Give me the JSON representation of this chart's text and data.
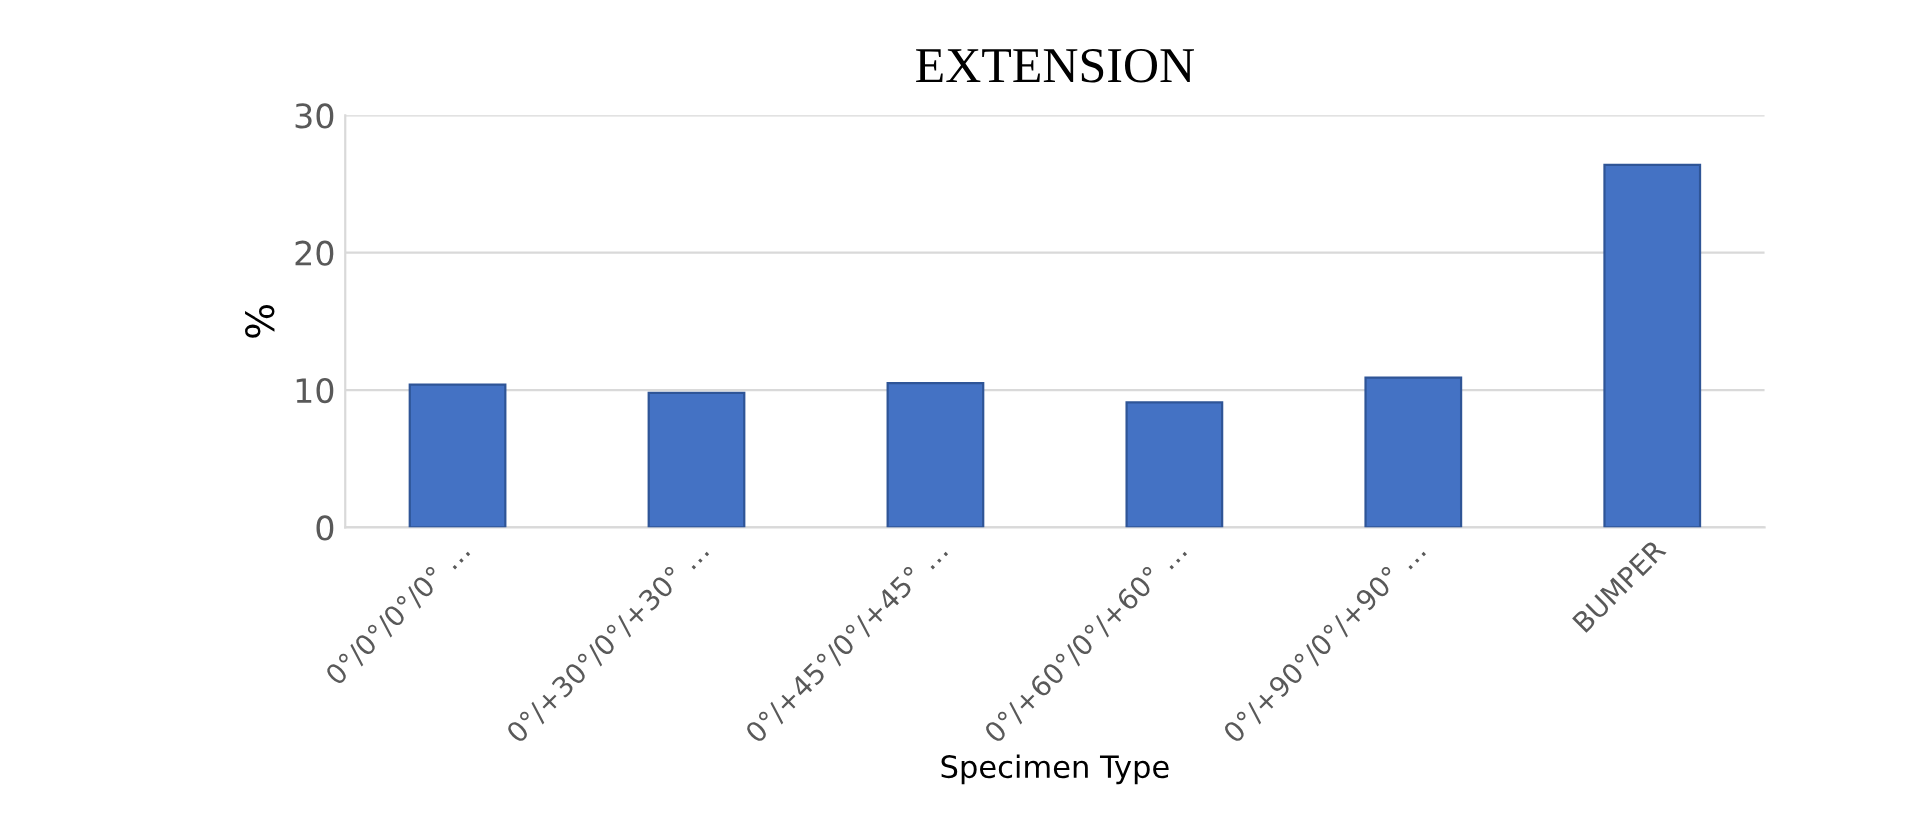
{
  "chart_data": {
    "type": "bar",
    "title": "EXTENSION",
    "xlabel": "Specimen Type",
    "ylabel": "%",
    "categories": [
      "0°/0°/0°/0° …",
      "0°/+30°/0°/+30° …",
      "0°/+45°/0°/+45° …",
      "0°/+60°/0°/+60° …",
      "0°/+90°/0°/+90° …",
      "BUMPER"
    ],
    "values": [
      10.4,
      9.8,
      10.5,
      9.1,
      10.9,
      26.4
    ],
    "color": "#4472c4",
    "ylim": [
      0,
      30
    ],
    "yticks": [
      0,
      10,
      20,
      30
    ],
    "grid": "y",
    "legend": false
  }
}
